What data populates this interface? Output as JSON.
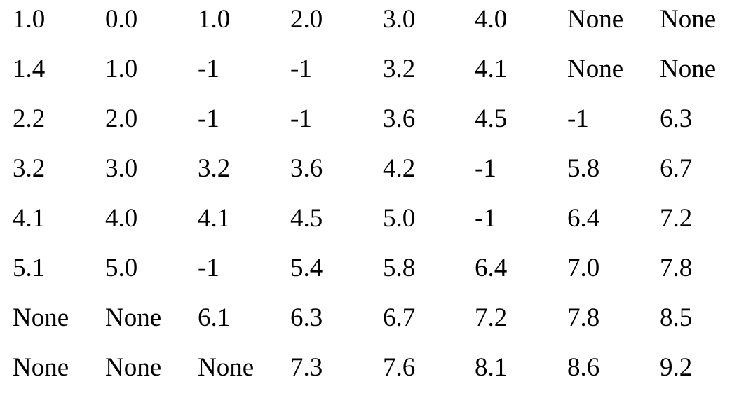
{
  "table": {
    "rows": [
      [
        "1.0",
        "0.0",
        "1.0",
        "2.0",
        "3.0",
        "4.0",
        "None",
        "None"
      ],
      [
        "1.4",
        "1.0",
        "-1",
        "-1",
        "3.2",
        "4.1",
        "None",
        "None"
      ],
      [
        "2.2",
        "2.0",
        "-1",
        "-1",
        "3.6",
        "4.5",
        "-1",
        "6.3"
      ],
      [
        "3.2",
        "3.0",
        "3.2",
        "3.6",
        "4.2",
        "-1",
        "5.8",
        "6.7"
      ],
      [
        "4.1",
        "4.0",
        "4.1",
        "4.5",
        "5.0",
        "-1",
        "6.4",
        "7.2"
      ],
      [
        "5.1",
        "5.0",
        "-1",
        "5.4",
        "5.8",
        "6.4",
        "7.0",
        "7.8"
      ],
      [
        "None",
        "None",
        "6.1",
        "6.3",
        "6.7",
        "7.2",
        "7.8",
        "8.5"
      ],
      [
        "None",
        "None",
        "None",
        "7.3",
        "7.6",
        "8.1",
        "8.6",
        "9.2"
      ]
    ]
  }
}
